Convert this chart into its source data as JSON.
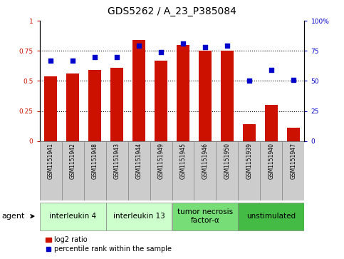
{
  "title": "GDS5262 / A_23_P385084",
  "samples": [
    "GSM1151941",
    "GSM1151942",
    "GSM1151948",
    "GSM1151943",
    "GSM1151944",
    "GSM1151949",
    "GSM1151945",
    "GSM1151946",
    "GSM1151950",
    "GSM1151939",
    "GSM1151940",
    "GSM1151947"
  ],
  "log2_ratio": [
    0.54,
    0.56,
    0.59,
    0.61,
    0.84,
    0.67,
    0.8,
    0.75,
    0.75,
    0.14,
    0.3,
    0.11
  ],
  "percentile": [
    67,
    67,
    70,
    70,
    79,
    74,
    81,
    78,
    79,
    50,
    59,
    51
  ],
  "agents": [
    {
      "label": "interleukin 4",
      "start": 0,
      "end": 3,
      "color": "#ccffcc"
    },
    {
      "label": "interleukin 13",
      "start": 3,
      "end": 6,
      "color": "#ccffcc"
    },
    {
      "label": "tumor necrosis\nfactor-α",
      "start": 6,
      "end": 9,
      "color": "#77dd77"
    },
    {
      "label": "unstimulated",
      "start": 9,
      "end": 12,
      "color": "#44bb44"
    }
  ],
  "agent_label": "agent",
  "bar_color": "#cc1100",
  "dot_color": "#0000cc",
  "left_yticks": [
    0,
    0.25,
    0.5,
    0.75,
    1.0
  ],
  "right_yticks": [
    0,
    25,
    50,
    75,
    100
  ],
  "ylim_left": [
    0,
    1.0
  ],
  "ylim_right": [
    0,
    100
  ],
  "legend_bar_label": "log2 ratio",
  "legend_dot_label": "percentile rank within the sample",
  "title_fontsize": 10,
  "tick_fontsize": 6.5,
  "sample_fontsize": 5.5,
  "agent_fontsize": 7.5,
  "legend_fontsize": 7,
  "sample_box_color": "#cccccc",
  "grid_dotted_color": "#000000"
}
